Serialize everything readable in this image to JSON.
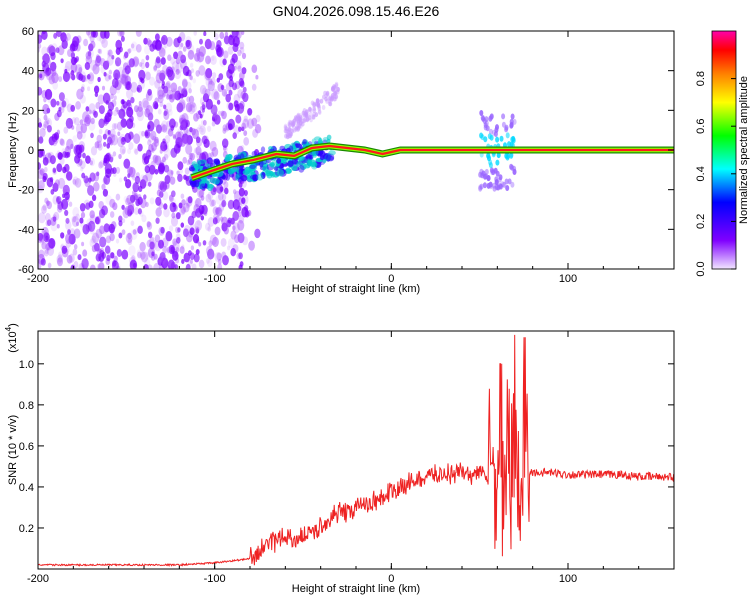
{
  "title": "GN04.2026.098.15.46.E26",
  "colors": {
    "snr_line": "#ee2222",
    "track_core": "#ff1a1a",
    "axis": "#000000"
  },
  "chart_data": [
    {
      "type": "heatmap",
      "xlabel": "Height of straight line (km)",
      "ylabel": "Frequency (Hz)",
      "xlim": [
        -200,
        160
      ],
      "ylim": [
        -60,
        60
      ],
      "xticks": [
        -200,
        -100,
        0,
        100
      ],
      "yticks": [
        -60,
        -40,
        -20,
        0,
        20,
        40,
        60
      ],
      "colorbar": {
        "label": "Normalized spectral amplitude",
        "range": [
          0,
          1
        ],
        "ticks": [
          "0.0",
          "0.2",
          "0.4",
          "0.6",
          "0.8"
        ],
        "colormap": [
          "#f2e6ff",
          "#8000ff",
          "#0000ff",
          "#00ffff",
          "#00ff00",
          "#ffff00",
          "#ff8000",
          "#ff0000",
          "#ff00aa"
        ]
      },
      "track": [
        {
          "x": -113,
          "freq": -14
        },
        {
          "x": -100,
          "freq": -10
        },
        {
          "x": -90,
          "freq": -7
        },
        {
          "x": -78,
          "freq": -5
        },
        {
          "x": -65,
          "freq": -2
        },
        {
          "x": -55,
          "freq": -3
        },
        {
          "x": -45,
          "freq": 1
        },
        {
          "x": -35,
          "freq": 2
        },
        {
          "x": -25,
          "freq": 1
        },
        {
          "x": -15,
          "freq": 0
        },
        {
          "x": -5,
          "freq": -2
        },
        {
          "x": 5,
          "freq": 0
        },
        {
          "x": 20,
          "freq": 0
        },
        {
          "x": 40,
          "freq": 0
        },
        {
          "x": 55,
          "freq": 0
        },
        {
          "x": 65,
          "freq": 0
        },
        {
          "x": 80,
          "freq": 0
        },
        {
          "x": 100,
          "freq": 0
        },
        {
          "x": 120,
          "freq": 0
        },
        {
          "x": 140,
          "freq": 0
        },
        {
          "x": 160,
          "freq": 0
        }
      ]
    },
    {
      "type": "line",
      "xlabel": "Height of straight line (km)",
      "ylabel": "SNR (10 * v/v)",
      "y_multiplier": "(x10",
      "y_multiplier_exp": "4",
      "xlim": [
        -200,
        160
      ],
      "ylim": [
        0,
        1.16
      ],
      "xticks": [
        -200,
        -100,
        0,
        100
      ],
      "yticks": [
        "0.2",
        "0.4",
        "0.6",
        "0.8",
        "1.0"
      ],
      "series": [
        {
          "x": [
            -200,
            -180,
            -160,
            -140,
            -120,
            -100,
            -90,
            -80,
            -75,
            -70,
            -65,
            -60,
            -55,
            -50,
            -45,
            -40,
            -35,
            -30,
            -25,
            -20,
            -15,
            -10,
            -5,
            0,
            5,
            10,
            15,
            20,
            25,
            30,
            35,
            40,
            45,
            50,
            55,
            60,
            62,
            64,
            66,
            68,
            70,
            72,
            74,
            76,
            78,
            80,
            90,
            100,
            110,
            120,
            130,
            140,
            150,
            160
          ],
          "values": [
            0.02,
            0.02,
            0.02,
            0.02,
            0.02,
            0.03,
            0.04,
            0.05,
            0.08,
            0.12,
            0.14,
            0.16,
            0.14,
            0.17,
            0.18,
            0.2,
            0.24,
            0.28,
            0.27,
            0.3,
            0.32,
            0.33,
            0.35,
            0.38,
            0.39,
            0.42,
            0.44,
            0.45,
            0.46,
            0.46,
            0.47,
            0.47,
            0.46,
            0.47,
            0.45,
            0.3,
            0.6,
            0.15,
            0.7,
            0.3,
            0.8,
            0.25,
            0.5,
            0.47,
            0.47,
            0.47,
            0.47,
            0.46,
            0.46,
            0.46,
            0.46,
            0.45,
            0.45,
            0.45
          ]
        }
      ],
      "grid": false
    }
  ]
}
